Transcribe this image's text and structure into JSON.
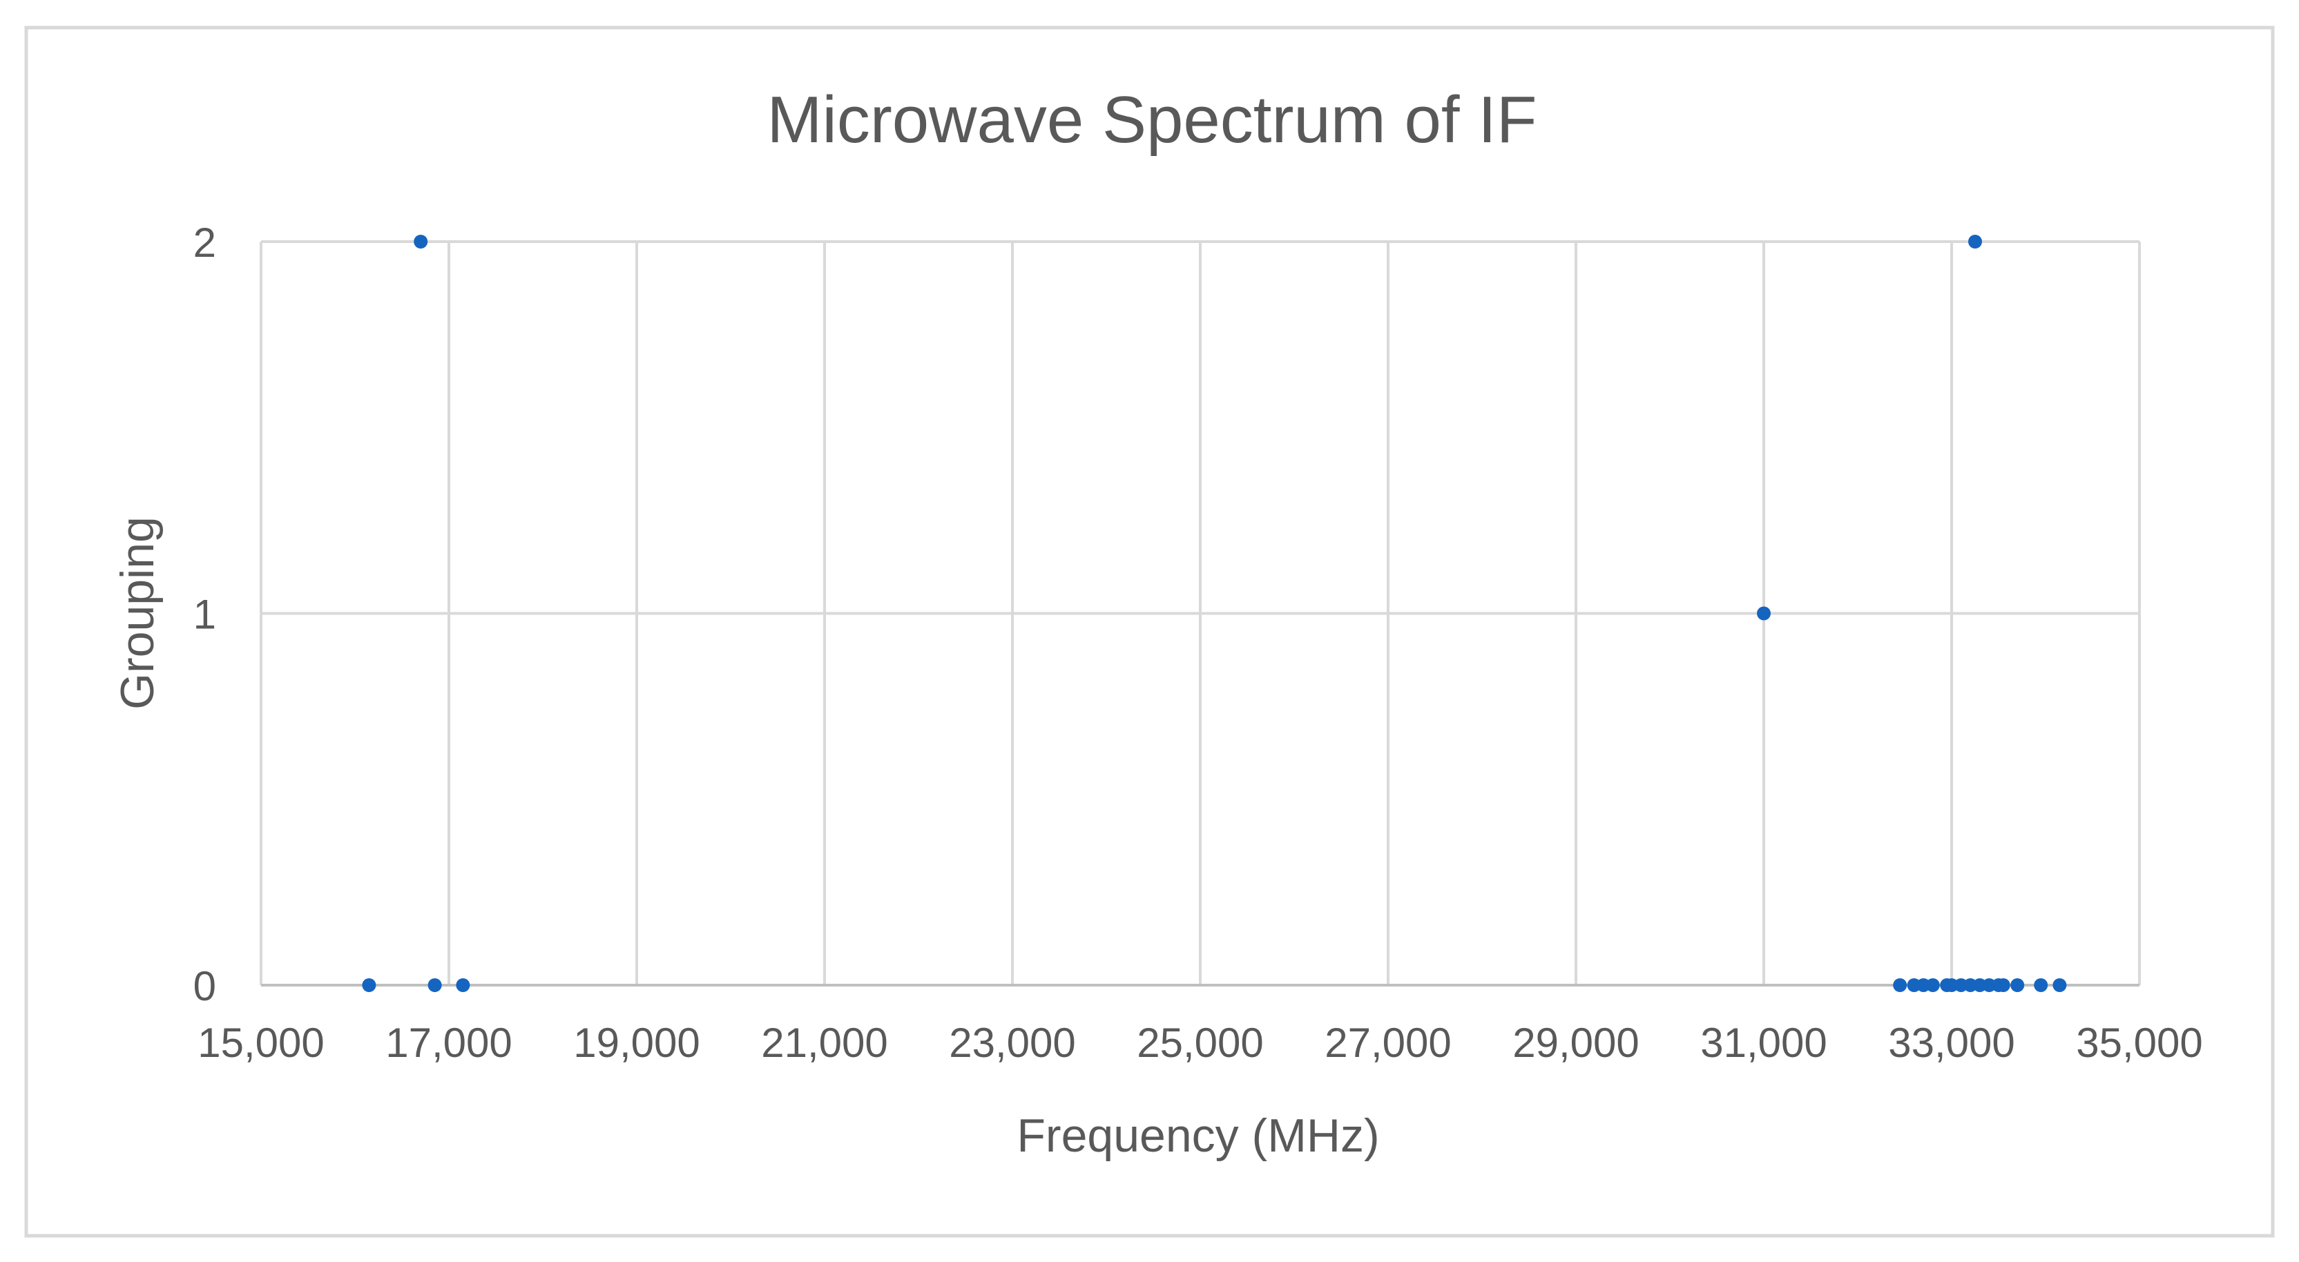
{
  "chart_data": {
    "type": "scatter",
    "title": "Microwave Spectrum of IF",
    "xlabel": "Frequency (MHz)",
    "ylabel": "Grouping",
    "xlim": [
      15000,
      35000
    ],
    "ylim": [
      0,
      2
    ],
    "x_ticks": [
      15000,
      17000,
      19000,
      21000,
      23000,
      25000,
      27000,
      29000,
      31000,
      33000,
      35000
    ],
    "x_tick_labels": [
      "15,000",
      "17,000",
      "19,000",
      "21,000",
      "23,000",
      "25,000",
      "27,000",
      "29,000",
      "31,000",
      "33,000",
      "35,000"
    ],
    "y_ticks": [
      0,
      1,
      2
    ],
    "y_tick_labels": [
      "0",
      "1",
      "2"
    ],
    "grid": true,
    "legend": "none",
    "series": [
      {
        "name": "IF",
        "color": "#1565C0",
        "points": [
          {
            "x": 16150,
            "y": 0
          },
          {
            "x": 16700,
            "y": 2
          },
          {
            "x": 16850,
            "y": 0
          },
          {
            "x": 17150,
            "y": 0
          },
          {
            "x": 31000,
            "y": 1
          },
          {
            "x": 32450,
            "y": 0
          },
          {
            "x": 32600,
            "y": 0
          },
          {
            "x": 32700,
            "y": 0
          },
          {
            "x": 32800,
            "y": 0
          },
          {
            "x": 32950,
            "y": 0
          },
          {
            "x": 33000,
            "y": 0
          },
          {
            "x": 33100,
            "y": 0
          },
          {
            "x": 33200,
            "y": 0
          },
          {
            "x": 33250,
            "y": 2
          },
          {
            "x": 33300,
            "y": 0
          },
          {
            "x": 33400,
            "y": 0
          },
          {
            "x": 33500,
            "y": 0
          },
          {
            "x": 33550,
            "y": 0
          },
          {
            "x": 33700,
            "y": 0
          },
          {
            "x": 33950,
            "y": 0
          },
          {
            "x": 34150,
            "y": 0
          }
        ]
      }
    ]
  }
}
